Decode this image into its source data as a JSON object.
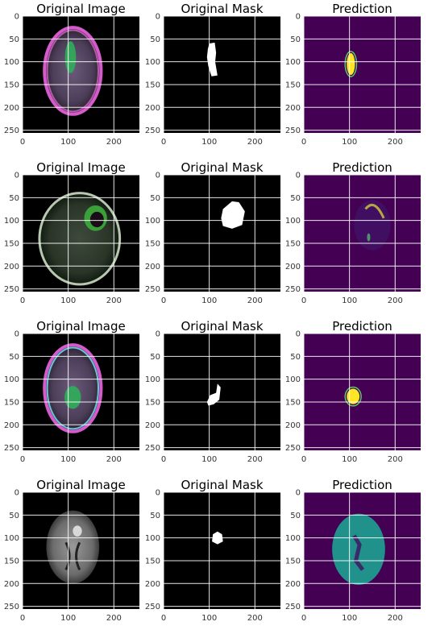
{
  "figure": {
    "column_titles": [
      "Original Image",
      "Original Mask",
      "Prediction"
    ],
    "x_ticks": [
      "0",
      "100",
      "200"
    ],
    "y_ticks": [
      "0",
      "50",
      "100",
      "150",
      "200",
      "250"
    ],
    "rows": [
      {
        "name": "row-1",
        "image_scan": "mri-axial-brain-slice-magenta-rim-green-lesion",
        "mask_label": "white-lesion-blob",
        "prediction_label": "yellow-green-lesion-on-purple"
      },
      {
        "name": "row-2",
        "image_scan": "mri-axial-brain-slice-dark-green-tint",
        "mask_label": "white-round-lesion",
        "prediction_label": "faint-lesion-outline-on-purple"
      },
      {
        "name": "row-3",
        "image_scan": "mri-axial-brain-slice-cyan-magenta-rim",
        "mask_label": "small-white-lesion",
        "prediction_label": "yellow-lesion-on-purple"
      },
      {
        "name": "row-4",
        "image_scan": "mri-axial-brain-slice-grayscale",
        "mask_label": "tiny-white-lesion",
        "prediction_label": "teal-brain-region-on-purple"
      }
    ]
  },
  "colors": {
    "axes_background_dark": "#000000",
    "prediction_background": "#440154",
    "prediction_high": "#fde725",
    "prediction_mid": "#21918c",
    "grid": "#ffffff",
    "tick_text": "#333333"
  }
}
